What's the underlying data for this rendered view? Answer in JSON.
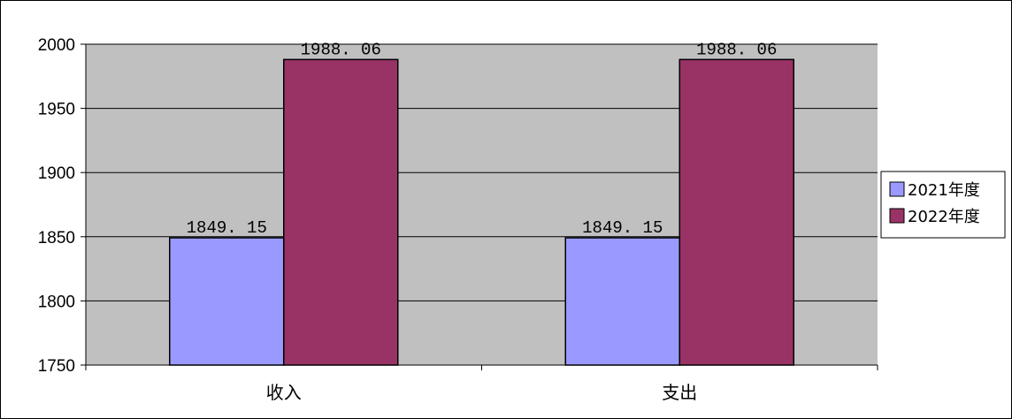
{
  "chart_data": {
    "type": "bar",
    "categories": [
      "收入",
      "支出"
    ],
    "series": [
      {
        "name": "2021年度",
        "values": [
          1849.15,
          1849.15
        ],
        "color": "#9999FF"
      },
      {
        "name": "2022年度",
        "values": [
          1988.06,
          1988.06
        ],
        "color": "#993366"
      }
    ],
    "data_labels": [
      [
        "1849. 15",
        "1849. 15"
      ],
      [
        "1988. 06",
        "1988. 06"
      ]
    ],
    "ylim": [
      1750,
      2000
    ],
    "yticks": [
      1750,
      1800,
      1850,
      1900,
      1950,
      2000
    ],
    "plot_background": "#C0C0C0",
    "grid": true,
    "legend": "right",
    "title": "",
    "xlabel": "",
    "ylabel": ""
  }
}
